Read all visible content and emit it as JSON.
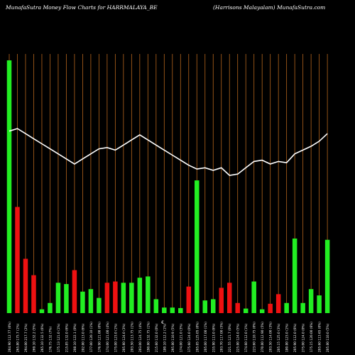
{
  "header": {
    "left": "MunafaSutra  Money Flow  Charts for HARRMALAYA_BE",
    "right": "(Harrisons Malayalam) MunafaSutra.com"
  },
  "colors": {
    "up": "#22ee22",
    "down": "#ee1111",
    "grid": "#b5651d",
    "line": "#ffffff"
  },
  "chart_data": {
    "type": "bar",
    "title": "",
    "xlabel": "",
    "ylabel": "",
    "center_label": "€",
    "bar_ylim": [
      0,
      100
    ],
    "line_ylim": [
      0,
      100
    ],
    "categories": [
      "264.90 112.77 (0%)",
      "265.80 175.7 (1%)",
      "294.00 217.7 (2%)",
      "269.10 132.2 (5%)",
      "265.10 132.5 (6%)",
      "176.75 132 (7%)",
      "175.13 121.0 (1%)",
      "215.85 132.0 (6%)",
      "208.10 122.1 (0%)",
      "202.00 113.0 (6%)",
      "177.00 120.10 (1%)",
      "176.90 121.00 (0%)",
      "174.00 121.00 (4%)",
      "175.00 123.0 (1%)",
      "205.60 124.0 (3%)",
      "203.50 113.75 (1%)",
      "203.00 124.75 (4%)",
      "190.00 132.75 (1%)",
      "215.60 132.0 (0%)",
      "180.10 112.2 (1%)",
      "295.00 110.9 (5%)",
      "174.00 121.0 (3%)",
      "175.60 124.0 (0%)",
      "205.05 125.05 (0%)",
      "205.00 117.00 (1%)",
      "235.90 113.0 (6%)",
      "203.70 117.00 (5%)",
      "221.55 121.7 (0%)",
      "225.00 124.0 (5%)",
      "174.60 112.0 (1%)",
      "223.60 110.75 (0%)",
      "270.00 112.90 (5%)",
      "203.50 114.00 (3%)",
      "205.15 125.0 (3%)",
      "180.00 123.0 (1%)",
      "205.90 112.0 (6%)",
      "275.00 124.0 (0%)",
      "175.15 120.00 (6%)",
      "205.60 113.65 (0%)",
      "205.00 110.0 (5%)"
    ],
    "series": [
      {
        "kind": "bars",
        "values": [
          100,
          42,
          21.5,
          15,
          1.5,
          4,
          12,
          11.5,
          17,
          8.5,
          9.5,
          6,
          12,
          12.5,
          12,
          12,
          14,
          14.5,
          5.5,
          2.2,
          2.2,
          2,
          10.5,
          52.5,
          5,
          5.5,
          10,
          12,
          4,
          1.8,
          12.5,
          1.5,
          3.7,
          7.5,
          4,
          29.5,
          4,
          9.5,
          7,
          29
        ],
        "direction": [
          "up",
          "down",
          "down",
          "down",
          "up",
          "up",
          "up",
          "up",
          "down",
          "up",
          "up",
          "up",
          "down",
          "down",
          "up",
          "up",
          "up",
          "up",
          "up",
          "up",
          "up",
          "up",
          "down",
          "up",
          "up",
          "up",
          "down",
          "down",
          "down",
          "up",
          "up",
          "up",
          "down",
          "down",
          "up",
          "up",
          "up",
          "up",
          "up",
          "up"
        ]
      },
      {
        "kind": "line",
        "values": [
          72,
          73,
          71,
          69,
          67,
          65,
          63,
          61,
          59,
          61,
          63,
          65,
          65.5,
          64.5,
          66.5,
          68.5,
          70.5,
          68.5,
          66.5,
          64.5,
          62.5,
          60.5,
          58.5,
          57,
          57.5,
          56.5,
          57.5,
          54.5,
          55,
          57.5,
          60,
          60.5,
          59,
          60,
          59.5,
          63,
          64.5,
          66,
          68,
          71
        ]
      }
    ]
  }
}
